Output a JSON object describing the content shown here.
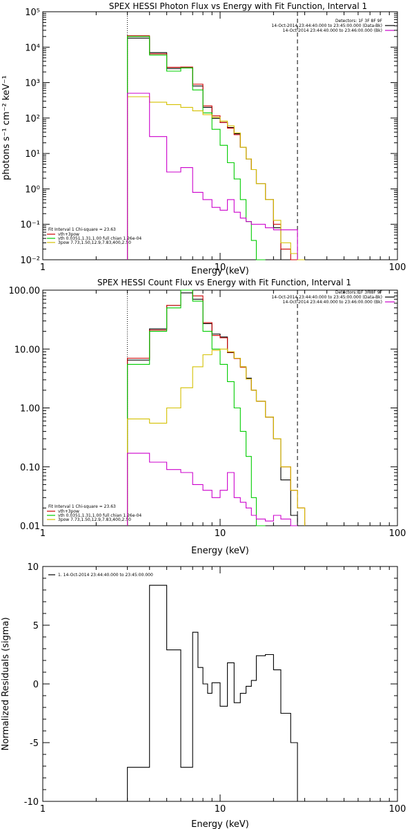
{
  "chart_data": [
    {
      "type": "line",
      "title": "SPEX HESSI Photon Flux vs Energy with Fit Function, Interval 1",
      "xlabel": "Energy (keV)",
      "ylabel": "photons s⁻¹ cm⁻² keV⁻¹",
      "xscale": "log",
      "yscale": "log",
      "xlim": [
        1,
        100
      ],
      "ylim": [
        0.01,
        100000
      ],
      "x_tick_labels": [
        "1",
        "10",
        "100"
      ],
      "y_tick_labels": [
        "10⁻²",
        "10⁻¹",
        "10⁰",
        "10¹",
        "10²",
        "10³",
        "10⁴",
        "10⁵"
      ],
      "vlines": [
        {
          "x": 3.0,
          "style": "dotted"
        },
        {
          "x": 27.3,
          "style": "dashed"
        }
      ],
      "legend_right": {
        "header": "Detectors: 1F 3F 8F 9F",
        "entries": [
          {
            "label": "14-Oct-2014 23:44:40.000 to 23:45:00.000 (Data-Bk)",
            "color": "#000000"
          },
          {
            "label": "14-Oct-2014 23:44:40.000 to 23:46:00.000 (Bk)",
            "color": "#cc00cc"
          }
        ]
      },
      "legend_left": {
        "header": "Fit Interval 1    Chi-square = 23.63",
        "entries": [
          {
            "label": "vth+3pow",
            "color": "#cc0000"
          },
          {
            "label": "vth 0.0351,1.31,1.00  full chian 1.26e-04",
            "color": "#00cc00"
          },
          {
            "label": "3pow 7.73,1.50,12.9,7.83,400,2.50",
            "color": "#d4c000"
          }
        ]
      },
      "x_edges": [
        3.0,
        4.0,
        5.0,
        6.0,
        7.0,
        8.0,
        9.0,
        10.0,
        11.0,
        12.0,
        13.0,
        14.0,
        15.0,
        16.0,
        18.0,
        20.0,
        22.0,
        25.0,
        27.3,
        30.0,
        35.0,
        40.0
      ],
      "series": [
        {
          "name": "14-Oct-2014 23:44:40.000 to 23:45:00.000 (Data-Bk)",
          "color": "#000000",
          "values": [
            18000,
            7000,
            2500,
            2600,
            800,
            200,
            98,
            75,
            54,
            36,
            15,
            7,
            3.5,
            1.4,
            0.5,
            0.08,
            0.01,
            null,
            null,
            null,
            null
          ]
        },
        {
          "name": "vth+3pow",
          "color": "#cc0000",
          "values": [
            21000,
            6500,
            2700,
            2750,
            900,
            220,
            115,
            75,
            52,
            34,
            15,
            7,
            3.5,
            1.4,
            0.5,
            0.1,
            0.02,
            0.007,
            null,
            null,
            null
          ]
        },
        {
          "name": "vth 0.0351,1.31,1.00  full chian 1.26e-04",
          "color": "#00cc00",
          "values": [
            20000,
            6000,
            2100,
            2600,
            620,
            140,
            48,
            17,
            5.5,
            1.9,
            0.5,
            0.12,
            0.035,
            0.01,
            null,
            null,
            null,
            null,
            null,
            null,
            null
          ]
        },
        {
          "name": "3pow 7.73,1.50,12.9,7.83,400,2.50",
          "color": "#d4c000",
          "values": [
            400,
            280,
            240,
            200,
            160,
            125,
            105,
            82,
            60,
            38,
            15,
            7,
            3.5,
            1.4,
            0.5,
            0.13,
            0.03,
            0.015,
            0.01,
            null,
            null
          ]
        },
        {
          "name": "14-Oct-2014 23:44:40.000 to 23:46:00.000 (Bk)",
          "color": "#cc00cc",
          "values": [
            500,
            30,
            3,
            4,
            0.8,
            0.5,
            0.3,
            0.25,
            0.5,
            0.22,
            0.15,
            0.12,
            0.1,
            0.1,
            0.08,
            0.07,
            0.07,
            0.07,
            null,
            null,
            null
          ]
        }
      ]
    },
    {
      "type": "line",
      "title": "SPEX HESSI Count Flux vs Energy with Fit Function, Interval 1",
      "xlabel": "Energy (keV)",
      "ylabel": "",
      "xscale": "log",
      "yscale": "log",
      "xlim": [
        1,
        100
      ],
      "ylim": [
        0.01,
        100
      ],
      "x_tick_labels": [
        "1",
        "10",
        "100"
      ],
      "y_tick_labels": [
        "0.01",
        "0.10",
        "1.00",
        "10.00",
        "100.00"
      ],
      "vlines": [
        {
          "x": 3.0,
          "style": "dotted"
        },
        {
          "x": 27.3,
          "style": "dashed"
        }
      ],
      "legend_right": {
        "header": "Detectors: 1F 3F 8F 9F",
        "entries": [
          {
            "label": "14-Oct-2014 23:44:40.000 to 23:45:00.000 (Data-Bk)",
            "color": "#000000"
          },
          {
            "label": "14-Oct-2014 23:44:40.000 to 23:46:00.000 (Bk)",
            "color": "#cc00cc"
          }
        ]
      },
      "legend_left": {
        "header": "Fit Interval 1    Chi-square = 23.63",
        "entries": [
          {
            "label": "vth+3pow",
            "color": "#cc0000"
          },
          {
            "label": "vth 0.0351,1.31,1.00  full chian 1.26e-04",
            "color": "#00cc00"
          },
          {
            "label": "3pow 7.73,1.50,12.9,7.83,400,2.50",
            "color": "#d4c000"
          }
        ]
      },
      "x_edges": [
        3.0,
        4.0,
        5.0,
        6.0,
        7.0,
        8.0,
        9.0,
        10.0,
        11.0,
        12.0,
        13.0,
        14.0,
        15.0,
        16.0,
        18.0,
        20.0,
        22.0,
        25.0,
        27.3,
        30.0
      ],
      "series": [
        {
          "name": "14-Oct-2014 23:44:40.000 to 23:45:00.000 (Data-Bk)",
          "color": "#000000",
          "values": [
            6.5,
            22,
            55,
            90,
            70,
            27,
            18,
            16,
            8.7,
            7.0,
            5.0,
            3.2,
            2.0,
            1.3,
            0.7,
            0.3,
            0.06,
            0.015,
            0.01
          ]
        },
        {
          "name": "vth+3pow",
          "color": "#cc0000",
          "values": [
            7.0,
            21,
            55,
            100,
            80,
            28,
            17,
            15.5,
            8.8,
            6.9,
            4.9,
            3.1,
            2.0,
            1.3,
            0.7,
            0.3,
            0.1,
            0.04,
            0.02
          ]
        },
        {
          "name": "vth 0.0351,1.31,1.00  full chian 1.26e-04",
          "color": "#00cc00",
          "values": [
            5.5,
            20,
            50,
            100,
            65,
            20,
            10,
            5.5,
            2.8,
            1.0,
            0.4,
            0.15,
            0.03,
            0.01,
            null,
            null,
            null,
            null,
            null
          ]
        },
        {
          "name": "3pow 7.73,1.50,12.9,7.83,400,2.50",
          "color": "#d4c000",
          "values": [
            0.65,
            0.55,
            1.0,
            2.2,
            5.0,
            8.0,
            9.5,
            10.0,
            9.0,
            7.0,
            5.0,
            3.1,
            2.0,
            1.3,
            0.7,
            0.3,
            0.1,
            0.04,
            0.02
          ]
        },
        {
          "name": "14-Oct-2014 23:44:40.000 to 23:46:00.000 (Bk)",
          "color": "#cc00cc",
          "values": [
            0.17,
            0.12,
            0.09,
            0.08,
            0.05,
            0.04,
            0.03,
            0.04,
            0.08,
            0.03,
            0.025,
            0.02,
            0.015,
            0.013,
            0.012,
            0.015,
            0.013,
            0.01,
            null
          ]
        }
      ]
    },
    {
      "type": "line",
      "title": "",
      "xlabel": "Energy (keV)",
      "ylabel": "Normalized Residuals (sigma)",
      "xscale": "log",
      "yscale": "linear",
      "xlim": [
        1,
        100
      ],
      "ylim": [
        -10,
        10
      ],
      "x_tick_labels": [
        "1",
        "10",
        "100"
      ],
      "y_tick_labels": [
        "-10",
        "-5",
        "0",
        "5",
        "10"
      ],
      "legend_left": {
        "entries": [
          {
            "label": "1. 14-Oct-2014 23:44:40.000 to 23:45:00.000",
            "color": "#000000"
          }
        ]
      },
      "x_edges": [
        3.0,
        4.0,
        5.0,
        6.0,
        7.0,
        7.5,
        8.0,
        8.5,
        9.0,
        10.0,
        11.0,
        12.0,
        13.0,
        14.0,
        15.0,
        16.0,
        18.0,
        20.0,
        22.0,
        25.0,
        27.3
      ],
      "series": [
        {
          "name": "1. 14-Oct-2014 23:44:40.000 to 23:45:00.000",
          "color": "#000000",
          "values": [
            -7.1,
            8.4,
            2.9,
            -7.1,
            4.4,
            1.4,
            0.0,
            -0.8,
            0.1,
            -1.9,
            1.8,
            -1.6,
            -0.8,
            -0.2,
            0.3,
            2.4,
            2.5,
            1.2,
            -2.5,
            -5.0
          ]
        }
      ]
    }
  ]
}
